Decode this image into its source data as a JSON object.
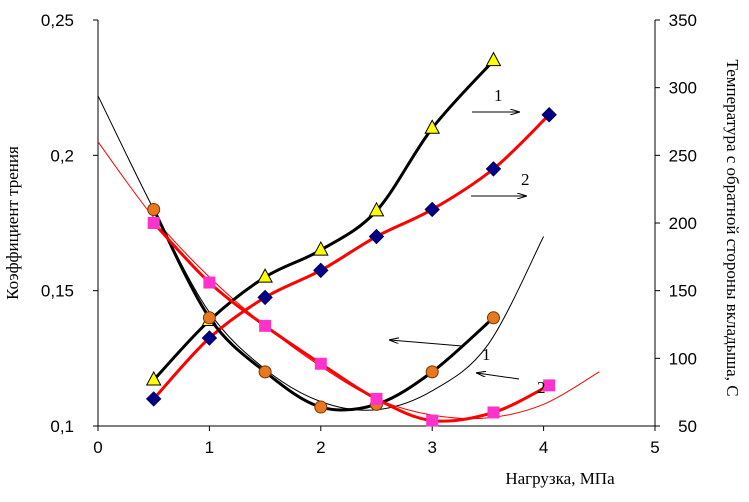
{
  "chart_data": {
    "type": "line",
    "title": "",
    "xlabel": "Нагрузка, МПа",
    "ylabel": "Коэффициент трения",
    "ylabel_right": "Температура с обратной стороны вкладыша, С",
    "xlim": [
      0,
      5
    ],
    "ylim": [
      0.1,
      0.25
    ],
    "ylim_right": [
      50,
      350
    ],
    "x_ticks": [
      "0",
      "1",
      "2",
      "3",
      "4",
      "5"
    ],
    "y_ticks": [
      "0,1",
      "0,15",
      "0,2",
      "0,25"
    ],
    "y_ticks_right": [
      "50",
      "100",
      "150",
      "200",
      "250",
      "300",
      "350"
    ],
    "grid": false,
    "legend": "none",
    "annotations": [
      {
        "text": "1",
        "refers_to": "temperature-1",
        "arrow": "right"
      },
      {
        "text": "2",
        "refers_to": "temperature-2",
        "arrow": "right"
      },
      {
        "text": "1",
        "refers_to": "friction-1",
        "arrow": "left"
      },
      {
        "text": "2",
        "refers_to": "friction-2",
        "arrow": "left"
      }
    ],
    "series": [
      {
        "id": "temperature-1",
        "axis": "right",
        "color": "#000000",
        "marker": "triangle",
        "marker_color": "#ffff00",
        "x": [
          0.5,
          1.0,
          1.5,
          2.0,
          2.5,
          3.0,
          3.55
        ],
        "values": [
          84,
          128,
          160,
          180,
          209,
          270,
          320
        ]
      },
      {
        "id": "temperature-2",
        "axis": "right",
        "color": "#ff0000",
        "marker": "diamond",
        "marker_color": "#00008b",
        "x": [
          0.5,
          1.0,
          1.5,
          2.0,
          2.5,
          3.0,
          3.55,
          4.05
        ],
        "values": [
          70,
          115,
          145,
          165,
          190,
          210,
          240,
          280
        ]
      },
      {
        "id": "friction-1",
        "axis": "left",
        "color": "#000000",
        "marker": "circle",
        "marker_color": "#e87722",
        "x": [
          0.5,
          1.0,
          1.5,
          2.0,
          2.5,
          3.0,
          3.55
        ],
        "values": [
          0.18,
          0.14,
          0.12,
          0.107,
          0.108,
          0.12,
          0.14
        ]
      },
      {
        "id": "friction-2",
        "axis": "left",
        "color": "#ff0000",
        "marker": "square",
        "marker_color": "#ff33cc",
        "x": [
          0.5,
          1.0,
          1.5,
          2.0,
          2.5,
          3.0,
          3.55,
          4.05
        ],
        "values": [
          0.175,
          0.153,
          0.137,
          0.123,
          0.11,
          0.102,
          0.105,
          0.115
        ]
      },
      {
        "id": "friction-1-trend",
        "axis": "left",
        "color": "#000000",
        "marker": "none",
        "x": [
          0,
          0.5,
          1.0,
          1.5,
          2.0,
          2.5,
          3.0,
          3.5,
          4.0
        ],
        "values": [
          0.222,
          0.18,
          0.142,
          0.121,
          0.109,
          0.106,
          0.113,
          0.13,
          0.17
        ]
      },
      {
        "id": "friction-2-trend",
        "axis": "left",
        "color": "#ff0000",
        "marker": "none",
        "x": [
          0,
          0.5,
          1.0,
          1.5,
          2.0,
          2.5,
          3.0,
          3.5,
          4.0,
          4.5
        ],
        "values": [
          0.205,
          0.177,
          0.155,
          0.137,
          0.122,
          0.11,
          0.104,
          0.103,
          0.108,
          0.12
        ]
      }
    ]
  }
}
